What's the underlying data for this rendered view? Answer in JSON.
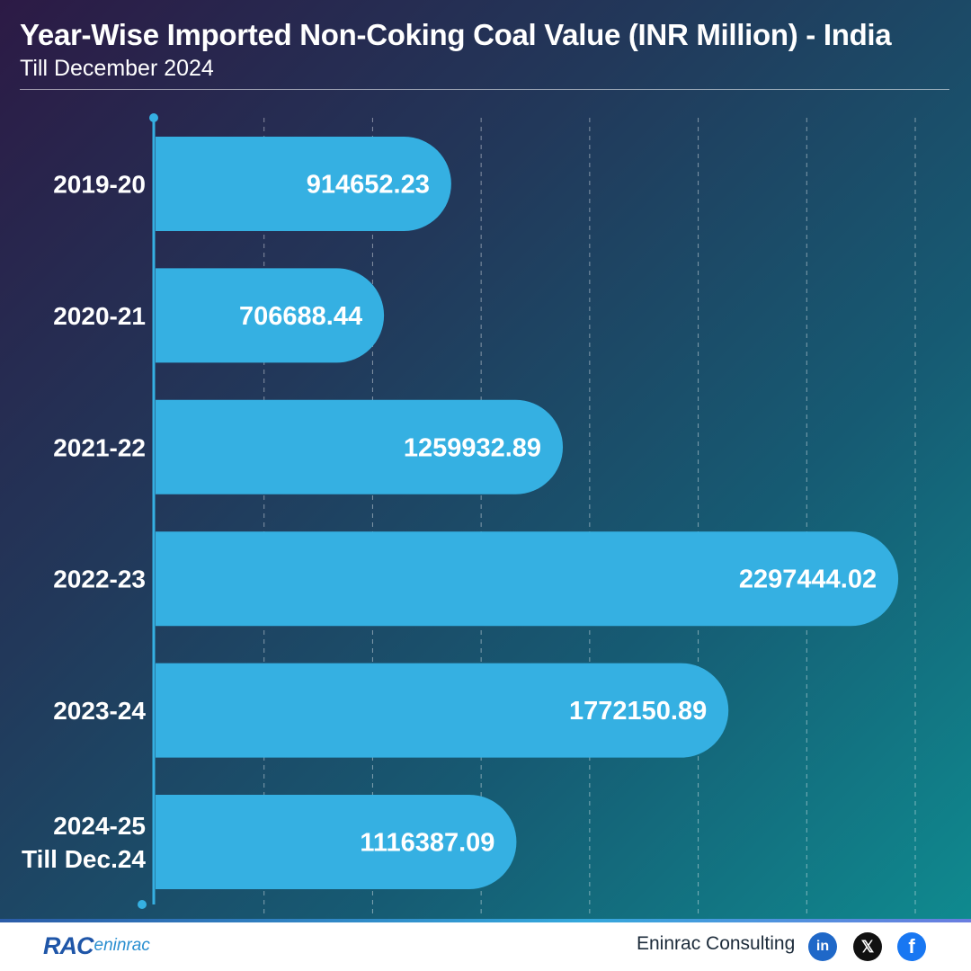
{
  "header": {
    "title": "Year-Wise Imported Non-Coking Coal Value (INR Million) - India",
    "subtitle": "Till December 2024"
  },
  "chart_data": {
    "type": "bar",
    "orientation": "horizontal",
    "title": "Year-Wise Imported Non-Coking Coal Value (INR Million) - India",
    "subtitle": "Till December 2024",
    "categories": [
      [
        "2019-20"
      ],
      [
        "2020-21"
      ],
      [
        "2021-22"
      ],
      [
        "2022-23"
      ],
      [
        "2023-24"
      ],
      [
        "2024-25",
        "Till Dec.24"
      ]
    ],
    "values": [
      914652.23,
      706688.44,
      1259932.89,
      2297444.02,
      1772150.89,
      1116387.09
    ],
    "value_labels": [
      "914652.23",
      "706688.44",
      "1259932.89",
      "2297444.02",
      "1772150.89",
      "1116387.09"
    ],
    "xlim": [
      0,
      2350000
    ],
    "grid": true,
    "legend": "none",
    "colors": {
      "bar": "#35b0e2",
      "axis": "#35b0e2",
      "grid": "rgba(255,255,255,0.45)",
      "label": "#ffffff"
    }
  },
  "footer": {
    "logo_text": "RAC",
    "logo_sub": "eninrac",
    "brand": "Eninrac Consulting",
    "social": [
      {
        "name": "linkedin-icon",
        "glyph": "in"
      },
      {
        "name": "x-icon",
        "glyph": "𝕏"
      },
      {
        "name": "facebook-icon",
        "glyph": "f"
      }
    ]
  }
}
